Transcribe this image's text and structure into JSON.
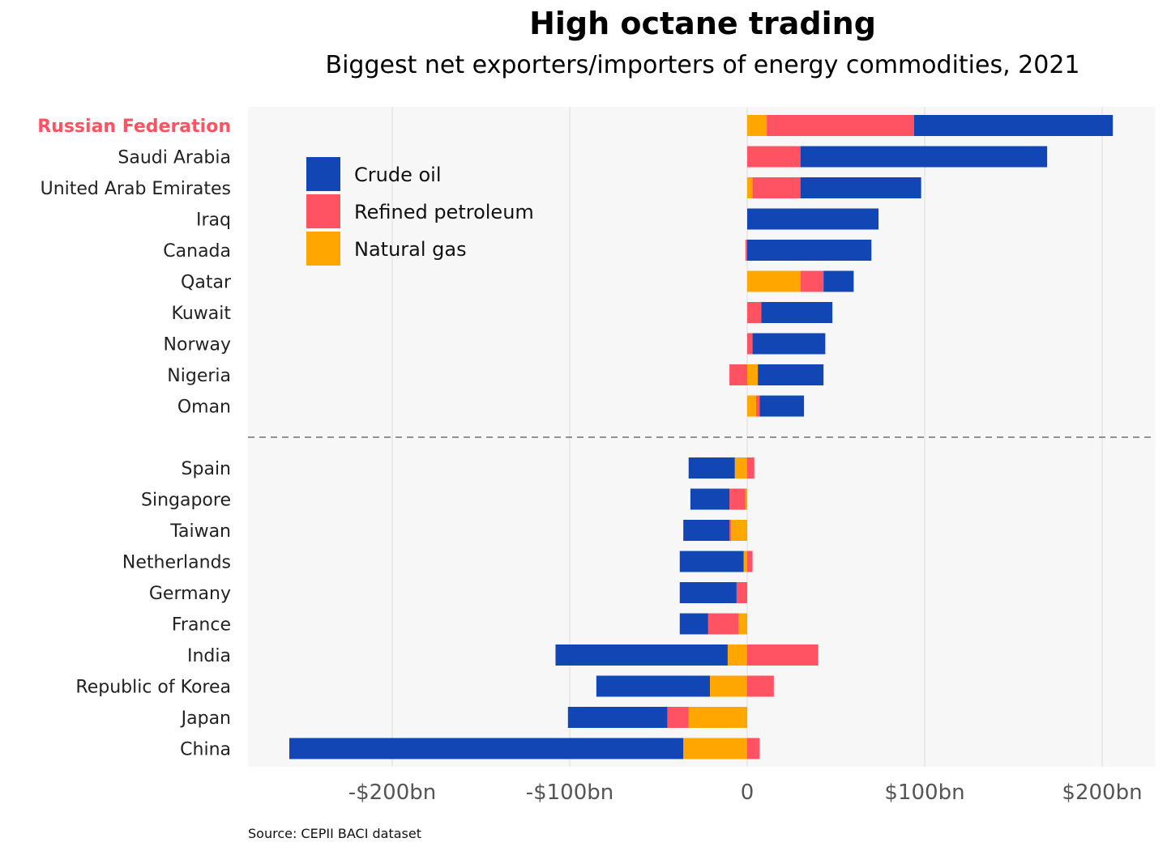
{
  "chart_data": {
    "type": "bar",
    "orientation": "horizontal",
    "stacked": "diverging",
    "title": "High octane trading",
    "subtitle": "Biggest net exporters/importers of energy commodities, 2021",
    "source": "Source: CEPII BACI dataset",
    "highlight": "Russian Federation",
    "highlight_color": "#ff5262",
    "xlim": [
      -280,
      230
    ],
    "x_ticks": [
      {
        "value": -200,
        "label": "-$200bn"
      },
      {
        "value": -100,
        "label": "-$100bn"
      },
      {
        "value": 0,
        "label": "0"
      },
      {
        "value": 100,
        "label": "$100bn"
      },
      {
        "value": 200,
        "label": "$200bn"
      }
    ],
    "grid": true,
    "legend_position": "top-left",
    "series": [
      {
        "name": "Crude oil",
        "color": "#1246b5"
      },
      {
        "name": "Refined petroleum",
        "color": "#ff5262"
      },
      {
        "name": "Natural gas",
        "color": "#ffa600"
      }
    ],
    "groups": [
      {
        "categories": [
          {
            "name": "Russian Federation",
            "natural_gas": 11,
            "refined_petroleum": 83,
            "crude_oil": 112
          },
          {
            "name": "Saudi Arabia",
            "natural_gas": 0,
            "refined_petroleum": 30,
            "crude_oil": 139
          },
          {
            "name": "United Arab Emirates",
            "natural_gas": 3,
            "refined_petroleum": 27,
            "crude_oil": 68
          },
          {
            "name": "Iraq",
            "natural_gas": 0,
            "refined_petroleum": 0,
            "crude_oil": 74
          },
          {
            "name": "Canada",
            "natural_gas": 0,
            "refined_petroleum": -1,
            "crude_oil": 70
          },
          {
            "name": "Qatar",
            "natural_gas": 30,
            "refined_petroleum": 13,
            "crude_oil": 17
          },
          {
            "name": "Kuwait",
            "natural_gas": 0,
            "refined_petroleum": 8,
            "crude_oil": 40
          },
          {
            "name": "Norway",
            "natural_gas": 0,
            "refined_petroleum": 3,
            "crude_oil": 41
          },
          {
            "name": "Nigeria",
            "natural_gas": 6,
            "refined_petroleum": -10,
            "crude_oil": 37
          },
          {
            "name": "Oman",
            "natural_gas": 5,
            "refined_petroleum": 2,
            "crude_oil": 25
          }
        ]
      },
      {
        "categories": [
          {
            "name": "Spain",
            "natural_gas": -7,
            "refined_petroleum": 4,
            "crude_oil": -26
          },
          {
            "name": "Singapore",
            "natural_gas": -1,
            "refined_petroleum": -9,
            "crude_oil": -22
          },
          {
            "name": "Taiwan",
            "natural_gas": -9,
            "refined_petroleum": -1,
            "crude_oil": -26
          },
          {
            "name": "Netherlands",
            "natural_gas": -2,
            "refined_petroleum": 3,
            "crude_oil": -36
          },
          {
            "name": "Germany",
            "natural_gas": 0,
            "refined_petroleum": -6,
            "crude_oil": -32
          },
          {
            "name": "France",
            "natural_gas": -5,
            "refined_petroleum": -17,
            "crude_oil": -16
          },
          {
            "name": "India",
            "natural_gas": -11,
            "refined_petroleum": 40,
            "crude_oil": -97
          },
          {
            "name": "Republic of Korea",
            "natural_gas": -21,
            "refined_petroleum": 15,
            "crude_oil": -64
          },
          {
            "name": "Japan",
            "natural_gas": -33,
            "refined_petroleum": -12,
            "crude_oil": -56
          },
          {
            "name": "China",
            "natural_gas": -36,
            "refined_petroleum": 7,
            "crude_oil": -222
          }
        ]
      }
    ]
  }
}
